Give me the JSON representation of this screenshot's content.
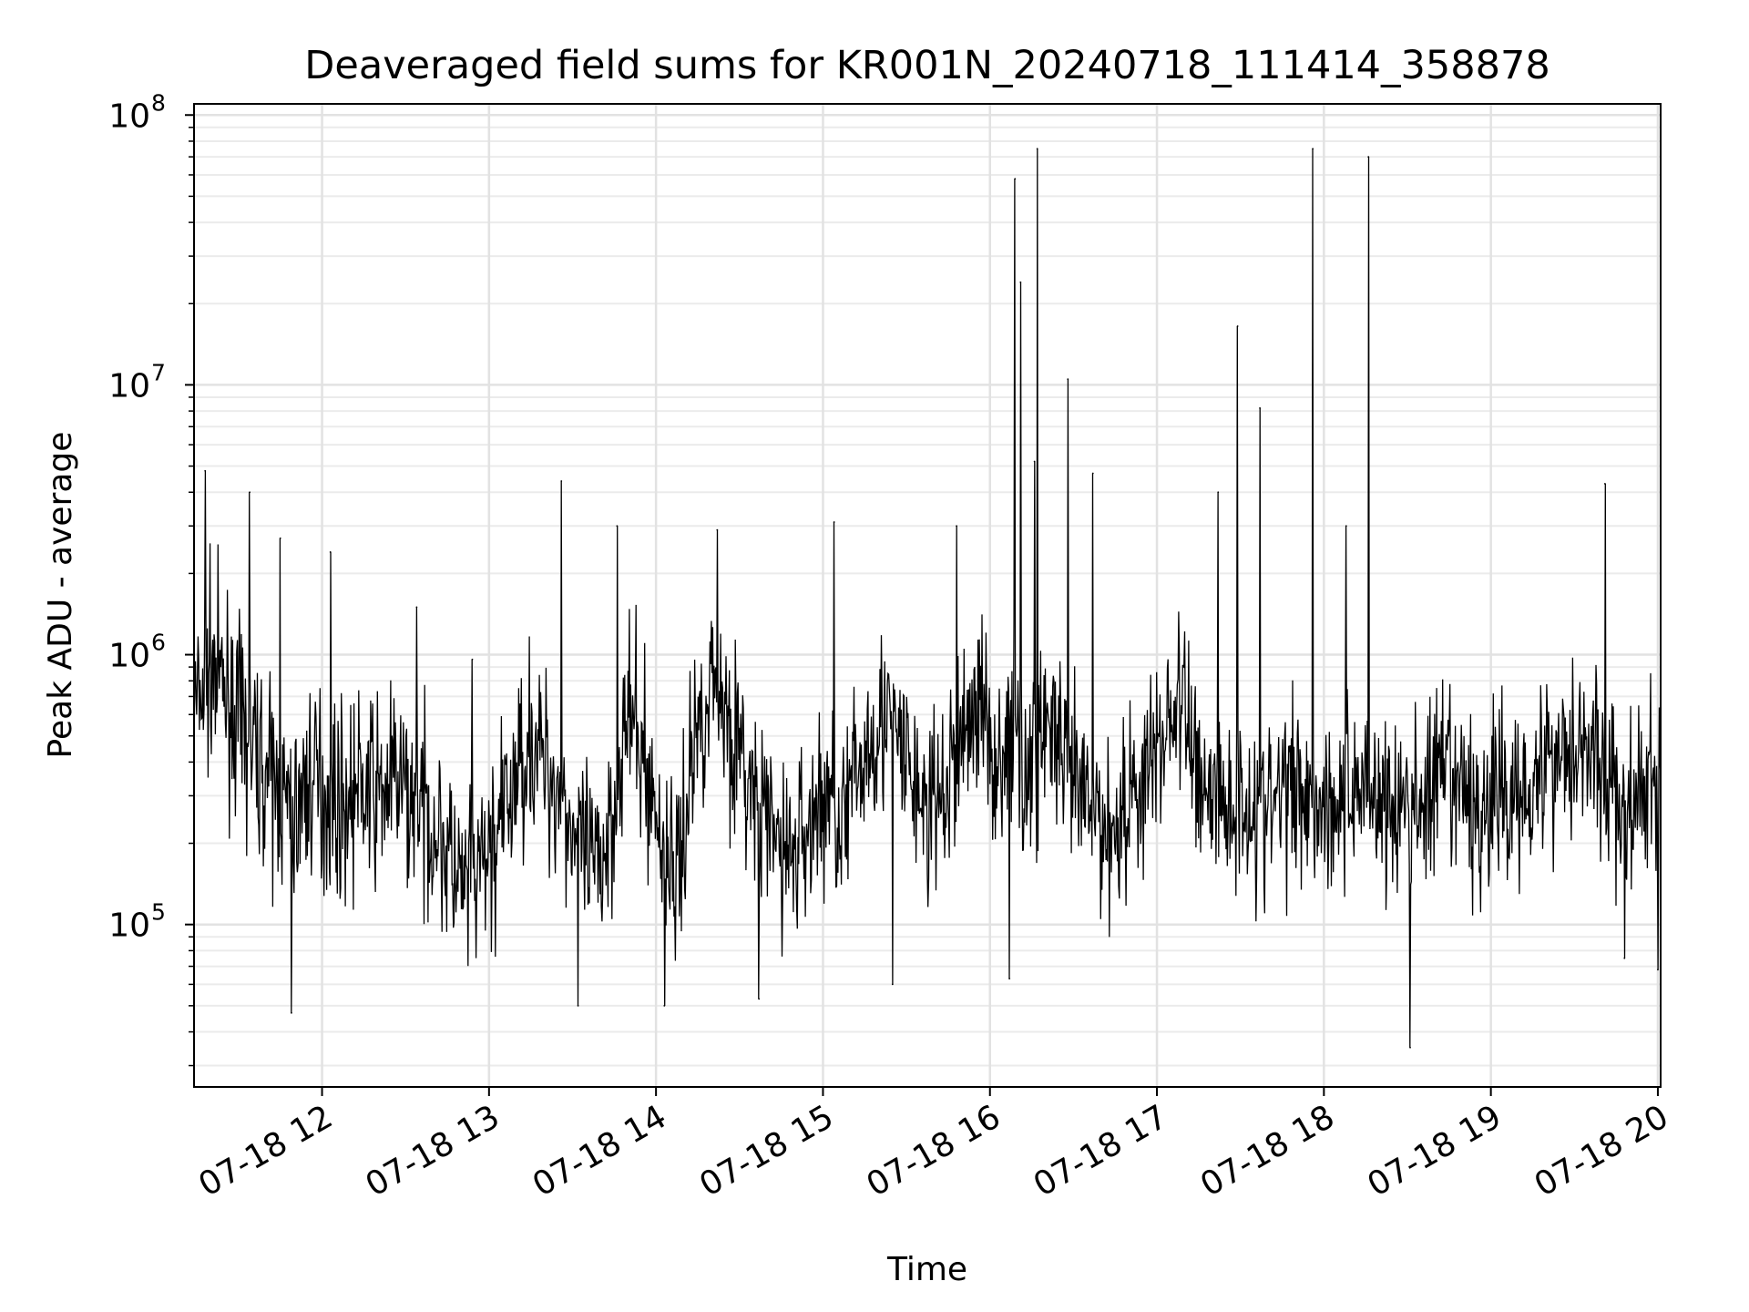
{
  "chart_data": {
    "type": "line",
    "title": "Deaveraged field sums for KR001N_20240718_111414_358878",
    "xlabel": "Time",
    "ylabel": "Peak ADU - average",
    "xscale": "time",
    "yscale": "log",
    "xlim": [
      "2024-07-18 11:14",
      "2024-07-18 20:01"
    ],
    "ylim": [
      25000,
      110000000
    ],
    "grid": "major and minor",
    "legend": "none",
    "line_color": "#000000",
    "x_ticks": [
      "07-18 12",
      "07-18 13",
      "07-18 14",
      "07-18 15",
      "07-18 16",
      "07-18 17",
      "07-18 18",
      "07-18 19",
      "07-18 20"
    ],
    "y_ticks": [
      {
        "value": 100000,
        "base": "10",
        "exp": "5"
      },
      {
        "value": 1000000,
        "base": "10",
        "exp": "6"
      },
      {
        "value": 10000000,
        "base": "10",
        "exp": "7"
      },
      {
        "value": 100000000,
        "base": "10",
        "exp": "8"
      }
    ],
    "series": [
      {
        "x": [
          "11:14",
          "11:20",
          "11:26",
          "11:32",
          "11:38",
          "11:44",
          "11:50",
          "11:56",
          "12:02",
          "12:08",
          "12:14",
          "12:20",
          "12:26",
          "12:32",
          "12:38",
          "12:44",
          "12:50",
          "12:56",
          "13:02",
          "13:08",
          "13:14",
          "13:20",
          "13:26",
          "13:32",
          "13:38",
          "13:44",
          "13:50",
          "13:56",
          "14:02",
          "14:08",
          "14:14",
          "14:20",
          "14:26",
          "14:32",
          "14:38",
          "14:44",
          "14:50",
          "14:56",
          "15:02",
          "15:08",
          "15:14",
          "15:20",
          "15:26",
          "15:32",
          "15:38",
          "15:44",
          "15:50",
          "15:56",
          "16:02",
          "16:08",
          "16:14",
          "16:20",
          "16:26",
          "16:32",
          "16:38",
          "16:44",
          "16:50",
          "16:56",
          "17:02",
          "17:08",
          "17:14",
          "17:20",
          "17:26",
          "17:32",
          "17:38",
          "17:44",
          "17:50",
          "17:56",
          "18:02",
          "18:08",
          "18:14",
          "18:20",
          "18:26",
          "18:32",
          "18:38",
          "18:44",
          "18:50",
          "18:56",
          "19:02",
          "19:08",
          "19:14",
          "19:20",
          "19:26",
          "19:32",
          "19:38",
          "19:44",
          "19:50",
          "19:56",
          "20:00"
        ],
        "y": [
          600000,
          900000,
          700000,
          500000,
          400000,
          300000,
          250000,
          350000,
          300000,
          280000,
          320000,
          300000,
          350000,
          280000,
          250000,
          200000,
          130000,
          150000,
          200000,
          300000,
          500000,
          400000,
          300000,
          200000,
          150000,
          250000,
          600000,
          400000,
          200000,
          150000,
          500000,
          800000,
          600000,
          350000,
          250000,
          200000,
          180000,
          250000,
          300000,
          250000,
          400000,
          600000,
          500000,
          350000,
          250000,
          300000,
          500000,
          700000,
          400000,
          500000,
          350000,
          600000,
          400000,
          300000,
          250000,
          220000,
          300000,
          350000,
          500000,
          700000,
          400000,
          300000,
          280000,
          300000,
          250000,
          300000,
          350000,
          300000,
          280000,
          300000,
          350000,
          300000,
          250000,
          280000,
          300000,
          350000,
          300000,
          250000,
          300000,
          300000,
          350000,
          400000,
          450000,
          500000,
          400000,
          300000,
          250000,
          300000,
          350000
        ],
        "spikes": [
          {
            "x": "11:18",
            "y": 4800000
          },
          {
            "x": "11:34",
            "y": 4000000
          },
          {
            "x": "11:45",
            "y": 2700000
          },
          {
            "x": "11:49",
            "y": 47000
          },
          {
            "x": "12:03",
            "y": 2400000
          },
          {
            "x": "12:34",
            "y": 1500000
          },
          {
            "x": "12:54",
            "y": 960000
          },
          {
            "x": "13:26",
            "y": 4400000
          },
          {
            "x": "13:32",
            "y": 50000
          },
          {
            "x": "13:46",
            "y": 3000000
          },
          {
            "x": "14:03",
            "y": 50000
          },
          {
            "x": "14:22",
            "y": 2900000
          },
          {
            "x": "14:37",
            "y": 53000
          },
          {
            "x": "15:04",
            "y": 3100000
          },
          {
            "x": "15:25",
            "y": 60000
          },
          {
            "x": "15:48",
            "y": 3000000
          },
          {
            "x": "16:07",
            "y": 63000
          },
          {
            "x": "16:09",
            "y": 58000000
          },
          {
            "x": "16:11",
            "y": 24000000
          },
          {
            "x": "16:16",
            "y": 5200000
          },
          {
            "x": "16:17",
            "y": 75000000
          },
          {
            "x": "16:28",
            "y": 10500000
          },
          {
            "x": "16:37",
            "y": 4700000
          },
          {
            "x": "17:22",
            "y": 4000000
          },
          {
            "x": "17:29",
            "y": 16500000
          },
          {
            "x": "17:37",
            "y": 8200000
          },
          {
            "x": "17:56",
            "y": 75000000
          },
          {
            "x": "18:08",
            "y": 3000000
          },
          {
            "x": "18:16",
            "y": 70000000
          },
          {
            "x": "18:31",
            "y": 35000
          },
          {
            "x": "19:41",
            "y": 4300000
          },
          {
            "x": "19:48",
            "y": 75000
          },
          {
            "x": "20:00",
            "y": 68000
          }
        ]
      }
    ]
  }
}
